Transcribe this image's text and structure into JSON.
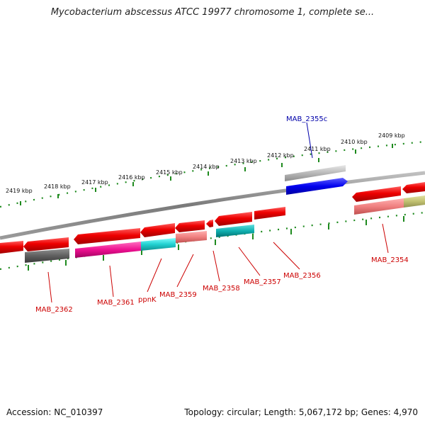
{
  "title": "Mycobacterium abscessus ATCC 19977 chromosome 1, complete se...",
  "footer": {
    "accession": "Accession: NC_010397",
    "topology": "Topology: circular; Length: 5,067,172 bp; Genes: 4,970"
  },
  "colors": {
    "backbone": "#8a8a8a",
    "ticks": "#1e8a1e",
    "label_red": "#cc0000",
    "label_blue": "#0000aa",
    "gene_red": "#ee0000",
    "highlight_blue": "#0000ee"
  },
  "kbp_labels": [
    "2419 kbp",
    "2418 kbp",
    "2417 kbp",
    "2416 kbp",
    "2415 kbp",
    "2414 kbp",
    "2413 kbp",
    "2412 kbp",
    "2411 kbp",
    "2410 kbp",
    "2409 kbp"
  ],
  "gene_labels": {
    "mab_2355c": "MAB_2355c",
    "mab_2354": "MAB_2354",
    "mab_2356": "MAB_2356",
    "mab_2357": "MAB_2357",
    "mab_2358": "MAB_2358",
    "mab_2359": "MAB_2359",
    "ppnk": "ppnK",
    "mab_2361": "MAB_2361",
    "mab_2362": "MAB_2362"
  }
}
